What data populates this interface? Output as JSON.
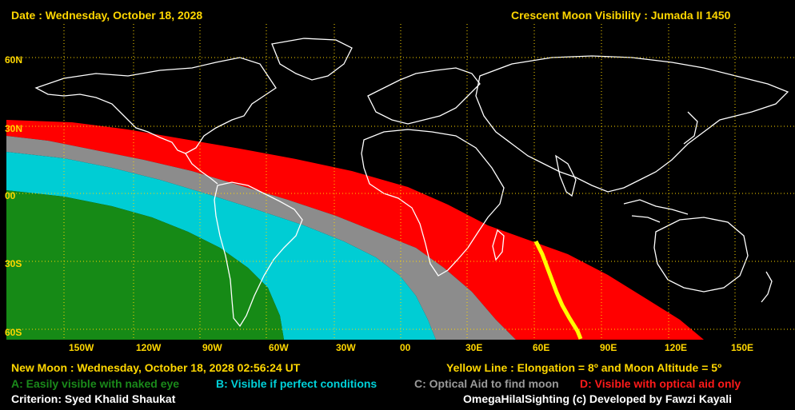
{
  "header": {
    "date_line": "Date : Wednesday, October 18, 2028",
    "title_line": "Crescent Moon Visibility : Jumada II  1450"
  },
  "axes": {
    "lat_labels": [
      "60N",
      "30N",
      "00",
      "30S",
      "60S"
    ],
    "lon_labels": [
      "150W",
      "120W",
      "90W",
      "60W",
      "30W",
      "00",
      "30E",
      "60E",
      "90E",
      "120E",
      "150E"
    ]
  },
  "footer": {
    "new_moon": "New Moon : Wednesday, October 18, 2028  02:56:24  UT",
    "yellow_line": "Yellow Line : Elongation = 8º  and Moon Altitude = 5º",
    "legend": [
      {
        "text": "A: Easily visible with naked eye",
        "color": "#1a8a1a"
      },
      {
        "text": "B: Visible if perfect conditions",
        "color": "#00d0d8"
      },
      {
        "text": "C: Optical Aid to find moon",
        "color": "#9a9a9a"
      },
      {
        "text": "D: Visible with optical aid only",
        "color": "#ff1a1a"
      }
    ],
    "criterion": "Criterion: Syed Khalid Shaukat",
    "credit": "OmegaHilalSighting  (c)  Developed by Fawzi Kayali"
  },
  "colors": {
    "zone_a": "#168a16",
    "zone_b": "#00cdd4",
    "zone_c": "#8c8c8c",
    "zone_d": "#ff0000",
    "yellow_line": "#ffff00",
    "grid": "#ffd700",
    "coastline": "#ffffff"
  }
}
